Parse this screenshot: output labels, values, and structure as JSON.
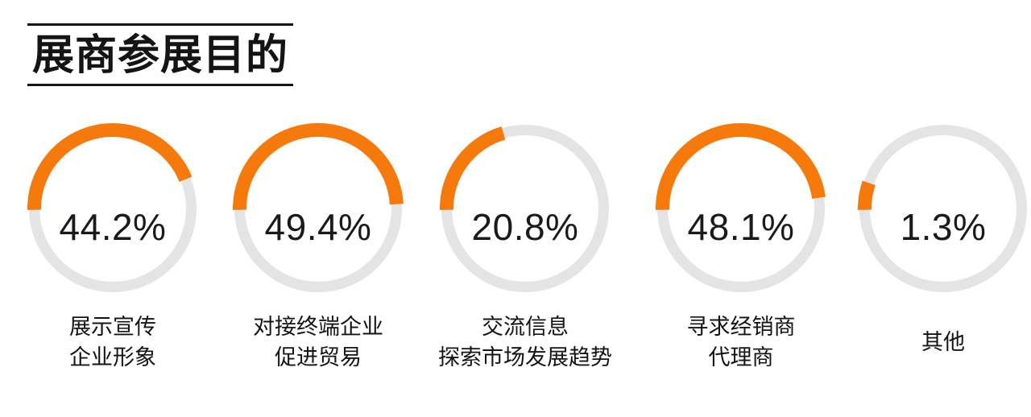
{
  "page": {
    "background": "#ffffff"
  },
  "header": {
    "title": "展商参展目的"
  },
  "colors": {
    "accent_orange": "#F5790B",
    "ring_gray": "#E4E4E4",
    "text_black": "#141414"
  },
  "chart_data": {
    "type": "pie",
    "subtype": "donut-ring-multiples",
    "title": "展商参展目的",
    "unit": "%",
    "ring_style": {
      "filled_color": "#F5790B",
      "remainder_color": "#E4E4E4",
      "start_position": "left (9 o'clock)",
      "direction": "clockwise",
      "value_label_position": "center of ring",
      "category_label_position": "below ring"
    },
    "items": [
      {
        "label": "展示宣传企业形象",
        "label_lines": [
          "展示宣传",
          "企业形象"
        ],
        "value": 44.2,
        "display": "44.2%"
      },
      {
        "label": "对接终端企业促进贸易",
        "label_lines": [
          "对接终端企业",
          "促进贸易"
        ],
        "value": 49.4,
        "display": "49.4%"
      },
      {
        "label": "交流信息探索市场发展趋势",
        "label_lines": [
          "交流信息",
          "探索市场发展趋势"
        ],
        "value": 20.8,
        "display": "20.8%"
      },
      {
        "label": "寻求经销商代理商",
        "label_lines": [
          "寻求经销商",
          "代理商"
        ],
        "value": 48.1,
        "display": "48.1%"
      },
      {
        "label": "其他",
        "label_lines": [
          "其他"
        ],
        "value": 1.3,
        "display": "1.3%"
      }
    ]
  }
}
